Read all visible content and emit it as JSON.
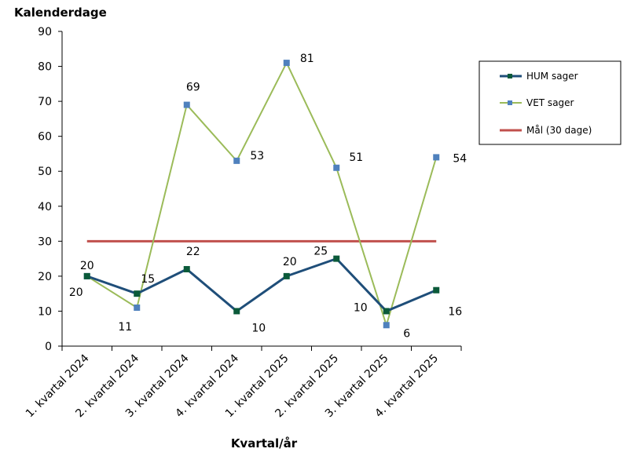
{
  "chart_data": {
    "type": "line",
    "ylabel": "Kalenderdage",
    "xlabel": "Kvartal/år",
    "categories": [
      "1. kvartal 2024",
      "2. kvartal 2024",
      "3. kvartal 2024",
      "4. kvartal 2024",
      "1. kvartal 2025",
      "2. kvartal 2025",
      "3. kvartal 2025",
      "4. kvartal 2025"
    ],
    "ylim": [
      0,
      90
    ],
    "yticks": [
      "0",
      "10",
      "20",
      "30",
      "40",
      "50",
      "60",
      "70",
      "80",
      "90"
    ],
    "grid": false,
    "legend_position": "right",
    "series": [
      {
        "name": "HUM sager",
        "values": [
          20,
          15,
          22,
          10,
          20,
          25,
          10,
          16
        ],
        "color": "#1f4e79",
        "marker_color": "#0b5a3a",
        "labels": true
      },
      {
        "name": "VET sager",
        "values": [
          20,
          11,
          69,
          53,
          81,
          51,
          6,
          54
        ],
        "color": "#9bbb59",
        "marker_color": "#4f81bd",
        "labels": true
      },
      {
        "name": "Mål (30 dage)",
        "values": [
          30,
          30,
          30,
          30,
          30,
          30,
          30,
          30
        ],
        "color": "#c0504d",
        "marker_color": null,
        "labels": false
      }
    ]
  }
}
